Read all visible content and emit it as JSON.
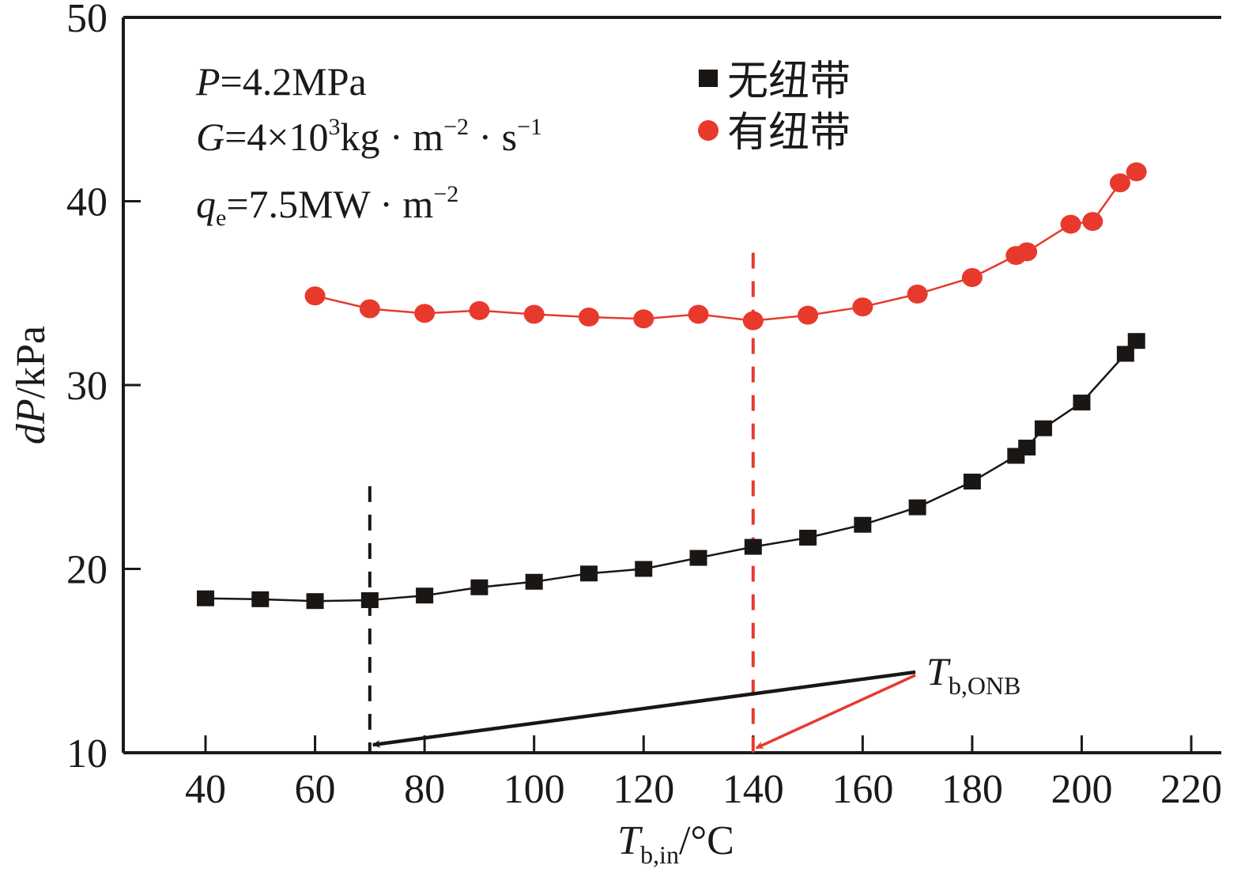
{
  "chart_data": {
    "type": "line",
    "title": "",
    "xlabel": {
      "main": "T",
      "sub": "b,in",
      "unit": "/°C"
    },
    "ylabel": {
      "main": "dP",
      "unit": "/kPa"
    },
    "xlim": [
      25,
      225
    ],
    "ylim": [
      10,
      50
    ],
    "xticks": [
      40,
      60,
      80,
      100,
      120,
      140,
      160,
      180,
      200,
      220
    ],
    "yticks": [
      10,
      20,
      30,
      40,
      50
    ],
    "grid": false,
    "legend_position": "top-center",
    "series": [
      {
        "name": "无纽带",
        "marker": "square",
        "color": "#1a1614",
        "x": [
          40,
          50,
          60,
          70,
          80,
          90,
          100,
          110,
          120,
          130,
          140,
          150,
          160,
          170,
          180,
          188,
          190,
          193,
          200,
          208,
          210
        ],
        "y": [
          18.4,
          18.35,
          18.25,
          18.3,
          18.55,
          19.0,
          19.3,
          19.75,
          20.0,
          20.6,
          21.2,
          21.7,
          22.4,
          23.35,
          24.75,
          26.15,
          26.6,
          27.65,
          29.05,
          31.7,
          32.4
        ]
      },
      {
        "name": "有纽带",
        "marker": "circle",
        "color": "#e8392d",
        "x": [
          60,
          70,
          80,
          90,
          100,
          110,
          120,
          130,
          140,
          150,
          160,
          170,
          180,
          188,
          190,
          198,
          202,
          207,
          210
        ],
        "y": [
          34.85,
          34.15,
          33.9,
          34.05,
          33.85,
          33.7,
          33.6,
          33.85,
          33.5,
          33.8,
          34.25,
          34.95,
          35.85,
          37.05,
          37.25,
          38.75,
          38.9,
          41.0,
          41.6
        ]
      }
    ],
    "conditions": [
      {
        "var": "P",
        "sub": "",
        "text": "=4.2MPa"
      },
      {
        "var": "G",
        "sub": "",
        "text": "=4×10",
        "sup1": "3",
        "text2": "kg · m",
        "sup2": "−2",
        "text3": " · s",
        "sup3": "−1"
      },
      {
        "var": "q",
        "sub": "e",
        "text": "=7.5MW · m",
        "sup1": "−2"
      }
    ],
    "annotations": {
      "onb_label": {
        "main": "T",
        "sub": "b,ONB"
      },
      "onb_lines": [
        {
          "series": "无纽带",
          "x": 70,
          "y_top": 24.5,
          "color": "#1a1614"
        },
        {
          "series": "有纽带",
          "x": 140,
          "y_top": 37.2,
          "color": "#e8392d"
        }
      ]
    }
  }
}
